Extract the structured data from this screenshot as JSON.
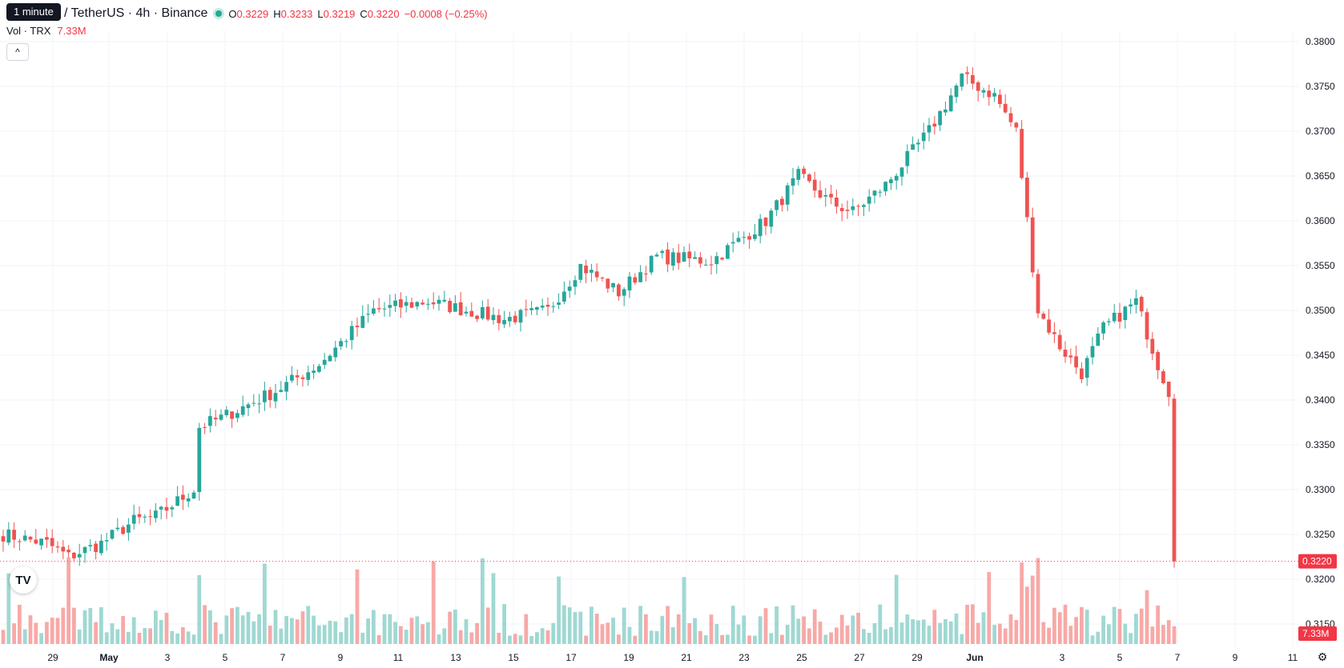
{
  "header": {
    "tooltip": "1 minute",
    "symbol_title": "/ TetherUS · 4h · Binance",
    "ohlc": {
      "o_label": "O",
      "o_value": "0.3229",
      "h_label": "H",
      "h_value": "0.3233",
      "l_label": "L",
      "l_value": "0.3219",
      "c_label": "C",
      "c_value": "0.3220",
      "change": "−0.0008 (−0.25%)"
    },
    "volume_label": "Vol · TRX",
    "volume_value": "7.33M",
    "collapse_icon": "chevron-up-icon"
  },
  "colors": {
    "up": "#26a69a",
    "down": "#ef5350",
    "up_volume": "#9fd8d2",
    "down_volume": "#f7a9a7",
    "grid": "#f0f3fa",
    "axis_text": "#131722",
    "price_line": "#f23645"
  },
  "chart_data": {
    "type": "candlestick",
    "interval": "4h",
    "symbol_title": "/ TetherUS · 4h · Binance",
    "y_axis": {
      "side": "right",
      "range": [
        0.315,
        0.38
      ],
      "ticks": [
        "0.3800",
        "0.3750",
        "0.3700",
        "0.3650",
        "0.3600",
        "0.3550",
        "0.3500",
        "0.3450",
        "0.3400",
        "0.3350",
        "0.3300",
        "0.3250",
        "0.3200",
        "0.3150"
      ]
    },
    "x_axis": {
      "ticks": [
        "29",
        "May",
        "3",
        "5",
        "7",
        "9",
        "11",
        "13",
        "15",
        "17",
        "19",
        "21",
        "23",
        "25",
        "27",
        "29",
        "Jun",
        "3",
        "5",
        "7",
        "9",
        "11"
      ]
    },
    "last_price": "0.3220",
    "last_volume": "7.33M",
    "grid": true,
    "candle_count": 216,
    "close_anchors": [
      [
        0,
        0.325
      ],
      [
        8,
        0.324
      ],
      [
        12,
        0.3225
      ],
      [
        18,
        0.324
      ],
      [
        24,
        0.3265
      ],
      [
        28,
        0.327
      ],
      [
        35,
        0.33
      ],
      [
        36,
        0.337
      ],
      [
        40,
        0.338
      ],
      [
        50,
        0.341
      ],
      [
        58,
        0.344
      ],
      [
        68,
        0.35
      ],
      [
        78,
        0.351
      ],
      [
        92,
        0.349
      ],
      [
        100,
        0.35
      ],
      [
        106,
        0.355
      ],
      [
        113,
        0.352
      ],
      [
        120,
        0.356
      ],
      [
        130,
        0.3555
      ],
      [
        140,
        0.36
      ],
      [
        146,
        0.365
      ],
      [
        152,
        0.362
      ],
      [
        156,
        0.361
      ],
      [
        162,
        0.364
      ],
      [
        170,
        0.37
      ],
      [
        176,
        0.376
      ],
      [
        182,
        0.374
      ],
      [
        186,
        0.37
      ],
      [
        188,
        0.36
      ],
      [
        190,
        0.35
      ],
      [
        194,
        0.346
      ],
      [
        198,
        0.343
      ],
      [
        202,
        0.348
      ],
      [
        208,
        0.351
      ],
      [
        212,
        0.344
      ],
      [
        216,
        0.338
      ],
      [
        220,
        0.332
      ],
      [
        222,
        0.335
      ],
      [
        226,
        0.332
      ],
      [
        232,
        0.331
      ],
      [
        236,
        0.322
      ],
      [
        242,
        0.322
      ],
      [
        246,
        0.329
      ],
      [
        254,
        0.327
      ],
      [
        258,
        0.322
      ]
    ],
    "volume_range": [
      0,
      4.6
    ]
  }
}
